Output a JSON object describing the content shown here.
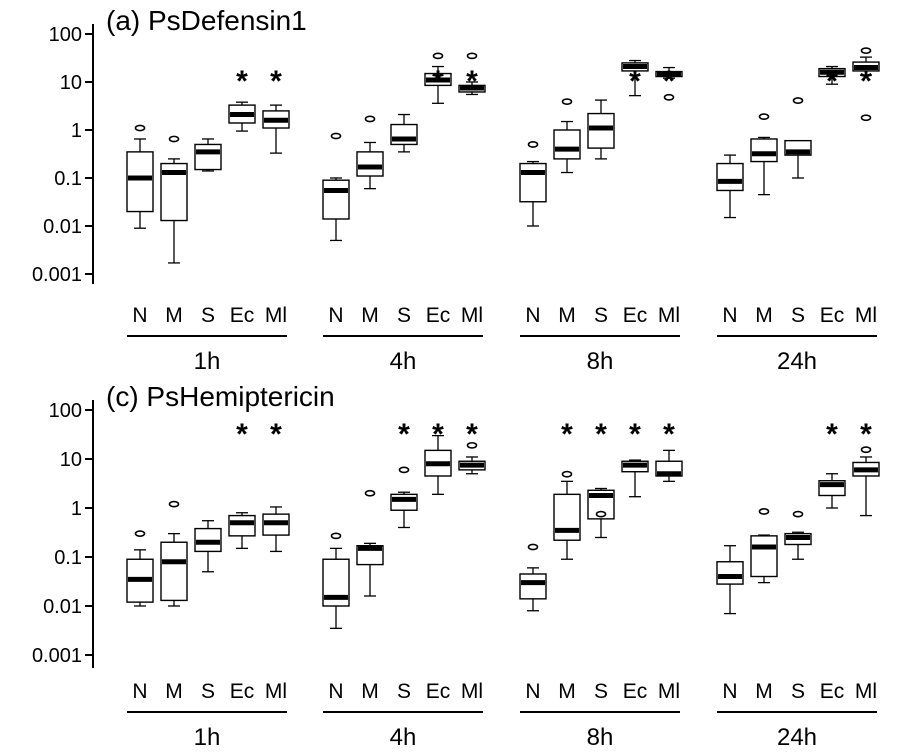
{
  "chart_data": [
    {
      "type": "box",
      "title": "(a) PsDefensin1",
      "y_scale": "log",
      "ylim": [
        0.001,
        100
      ],
      "yticks": [
        "100",
        "10",
        "1",
        "0.1",
        "0.01",
        "0.001"
      ],
      "groups": [
        {
          "label": "1h",
          "boxes": [
            {
              "category": "N",
              "min": 0.009,
              "q1": 0.02,
              "median": 0.1,
              "q3": 0.35,
              "max": 0.65,
              "outliers": [
                1.1
              ],
              "significant": false
            },
            {
              "category": "M",
              "min": 0.0017,
              "q1": 0.013,
              "median": 0.13,
              "q3": 0.2,
              "max": 0.25,
              "outliers": [
                0.65
              ],
              "significant": false
            },
            {
              "category": "S",
              "min": 0.14,
              "q1": 0.15,
              "median": 0.35,
              "q3": 0.5,
              "max": 0.65,
              "outliers": [],
              "significant": false
            },
            {
              "category": "Ec",
              "min": 0.95,
              "q1": 1.4,
              "median": 2.1,
              "q3": 3.3,
              "max": 3.8,
              "outliers": [],
              "significant": true
            },
            {
              "category": "Ml",
              "min": 0.33,
              "q1": 1.1,
              "median": 1.6,
              "q3": 2.5,
              "max": 3.3,
              "outliers": [],
              "significant": true
            }
          ]
        },
        {
          "label": "4h",
          "boxes": [
            {
              "category": "N",
              "min": 0.005,
              "q1": 0.014,
              "median": 0.055,
              "q3": 0.09,
              "max": 0.1,
              "outliers": [
                0.75
              ],
              "significant": false
            },
            {
              "category": "M",
              "min": 0.06,
              "q1": 0.11,
              "median": 0.17,
              "q3": 0.35,
              "max": 0.55,
              "outliers": [
                1.7
              ],
              "significant": false
            },
            {
              "category": "S",
              "min": 0.35,
              "q1": 0.5,
              "median": 0.65,
              "q3": 1.3,
              "max": 2.1,
              "outliers": [],
              "significant": false
            },
            {
              "category": "Ec",
              "min": 3.6,
              "q1": 8.5,
              "median": 11,
              "q3": 15,
              "max": 21,
              "outliers": [
                35
              ],
              "significant": true
            },
            {
              "category": "Ml",
              "min": 5.5,
              "q1": 6.2,
              "median": 7.5,
              "q3": 8.5,
              "max": 10,
              "outliers": [
                35
              ],
              "significant": true
            }
          ]
        },
        {
          "label": "8h",
          "boxes": [
            {
              "category": "N",
              "min": 0.01,
              "q1": 0.032,
              "median": 0.13,
              "q3": 0.2,
              "max": 0.22,
              "outliers": [
                0.5
              ],
              "significant": false
            },
            {
              "category": "M",
              "min": 0.13,
              "q1": 0.25,
              "median": 0.4,
              "q3": 1.0,
              "max": 1.5,
              "outliers": [
                3.9
              ],
              "significant": false
            },
            {
              "category": "S",
              "min": 0.25,
              "q1": 0.42,
              "median": 1.1,
              "q3": 2.2,
              "max": 4.2,
              "outliers": [],
              "significant": false
            },
            {
              "category": "Ec",
              "min": 5.2,
              "q1": 17,
              "median": 21,
              "q3": 25,
              "max": 28,
              "outliers": [],
              "significant": true
            },
            {
              "category": "Ml",
              "min": 12,
              "q1": 13,
              "median": 15,
              "q3": 16.5,
              "max": 20,
              "outliers": [
                4.8
              ],
              "significant": true
            }
          ]
        },
        {
          "label": "24h",
          "boxes": [
            {
              "category": "N",
              "min": 0.015,
              "q1": 0.055,
              "median": 0.085,
              "q3": 0.2,
              "max": 0.3,
              "outliers": [],
              "significant": false
            },
            {
              "category": "M",
              "min": 0.045,
              "q1": 0.22,
              "median": 0.32,
              "q3": 0.65,
              "max": 0.7,
              "outliers": [
                1.9
              ],
              "significant": false
            },
            {
              "category": "S",
              "min": 0.1,
              "q1": 0.3,
              "median": 0.35,
              "q3": 0.6,
              "max": 0.6,
              "outliers": [
                4.1
              ],
              "significant": false
            },
            {
              "category": "Ec",
              "min": 9,
              "q1": 13,
              "median": 16,
              "q3": 19,
              "max": 21,
              "outliers": [],
              "significant": true
            },
            {
              "category": "Ml",
              "min": 14,
              "q1": 17,
              "median": 20,
              "q3": 26,
              "max": 33,
              "outliers": [
                45,
                1.8
              ],
              "significant": true
            }
          ]
        }
      ]
    },
    {
      "type": "box",
      "title": "(c) PsHemiptericin",
      "y_scale": "log",
      "ylim": [
        0.001,
        100
      ],
      "yticks": [
        "100",
        "10",
        "1",
        "0.1",
        "0.01",
        "0.001"
      ],
      "groups": [
        {
          "label": "1h",
          "boxes": [
            {
              "category": "N",
              "min": 0.01,
              "q1": 0.012,
              "median": 0.035,
              "q3": 0.09,
              "max": 0.14,
              "outliers": [
                0.3
              ],
              "significant": false
            },
            {
              "category": "M",
              "min": 0.01,
              "q1": 0.013,
              "median": 0.08,
              "q3": 0.2,
              "max": 0.3,
              "outliers": [
                1.2
              ],
              "significant": false
            },
            {
              "category": "S",
              "min": 0.05,
              "q1": 0.13,
              "median": 0.2,
              "q3": 0.38,
              "max": 0.55,
              "outliers": [],
              "significant": false
            },
            {
              "category": "Ec",
              "min": 0.15,
              "q1": 0.27,
              "median": 0.5,
              "q3": 0.7,
              "max": 0.8,
              "outliers": [],
              "significant": true
            },
            {
              "category": "Ml",
              "min": 0.13,
              "q1": 0.28,
              "median": 0.5,
              "q3": 0.75,
              "max": 1.05,
              "outliers": [],
              "significant": true
            }
          ]
        },
        {
          "label": "4h",
          "boxes": [
            {
              "category": "N",
              "min": 0.0035,
              "q1": 0.01,
              "median": 0.015,
              "q3": 0.09,
              "max": 0.15,
              "outliers": [
                0.27
              ],
              "significant": false
            },
            {
              "category": "M",
              "min": 0.016,
              "q1": 0.07,
              "median": 0.15,
              "q3": 0.17,
              "max": 0.19,
              "outliers": [
                2.0
              ],
              "significant": false
            },
            {
              "category": "S",
              "min": 0.4,
              "q1": 0.9,
              "median": 1.5,
              "q3": 1.9,
              "max": 2.1,
              "outliers": [
                6.0
              ],
              "significant": true
            },
            {
              "category": "Ec",
              "min": 1.9,
              "q1": 4.5,
              "median": 8,
              "q3": 15,
              "max": 30,
              "outliers": [],
              "significant": true
            },
            {
              "category": "Ml",
              "min": 5,
              "q1": 6,
              "median": 7.5,
              "q3": 9,
              "max": 11,
              "outliers": [
                19
              ],
              "significant": true
            }
          ]
        },
        {
          "label": "8h",
          "boxes": [
            {
              "category": "N",
              "min": 0.008,
              "q1": 0.014,
              "median": 0.03,
              "q3": 0.045,
              "max": 0.06,
              "outliers": [
                0.16
              ],
              "significant": false
            },
            {
              "category": "M",
              "min": 0.09,
              "q1": 0.22,
              "median": 0.35,
              "q3": 1.9,
              "max": 3.5,
              "outliers": [
                4.9
              ],
              "significant": true
            },
            {
              "category": "S",
              "min": 0.25,
              "q1": 0.6,
              "median": 1.8,
              "q3": 2.3,
              "max": 2.5,
              "outliers": [
                0.75
              ],
              "significant": true
            },
            {
              "category": "Ec",
              "min": 1.7,
              "q1": 5.5,
              "median": 7.5,
              "q3": 9,
              "max": 9.5,
              "outliers": [],
              "significant": true
            },
            {
              "category": "Ml",
              "min": 3.5,
              "q1": 4.5,
              "median": 5,
              "q3": 9,
              "max": 15,
              "outliers": [],
              "significant": true
            }
          ]
        },
        {
          "label": "24h",
          "boxes": [
            {
              "category": "N",
              "min": 0.007,
              "q1": 0.028,
              "median": 0.04,
              "q3": 0.08,
              "max": 0.17,
              "outliers": [],
              "significant": false
            },
            {
              "category": "M",
              "min": 0.03,
              "q1": 0.04,
              "median": 0.16,
              "q3": 0.27,
              "max": 0.28,
              "outliers": [
                0.85
              ],
              "significant": false
            },
            {
              "category": "S",
              "min": 0.09,
              "q1": 0.18,
              "median": 0.25,
              "q3": 0.3,
              "max": 0.32,
              "outliers": [
                0.75
              ],
              "significant": false
            },
            {
              "category": "Ec",
              "min": 1,
              "q1": 1.8,
              "median": 3,
              "q3": 3.6,
              "max": 5,
              "outliers": [],
              "significant": true
            },
            {
              "category": "Ml",
              "min": 0.7,
              "q1": 4.5,
              "median": 6,
              "q3": 8.5,
              "max": 11,
              "outliers": [
                15.5
              ],
              "significant": true
            }
          ]
        }
      ]
    }
  ]
}
